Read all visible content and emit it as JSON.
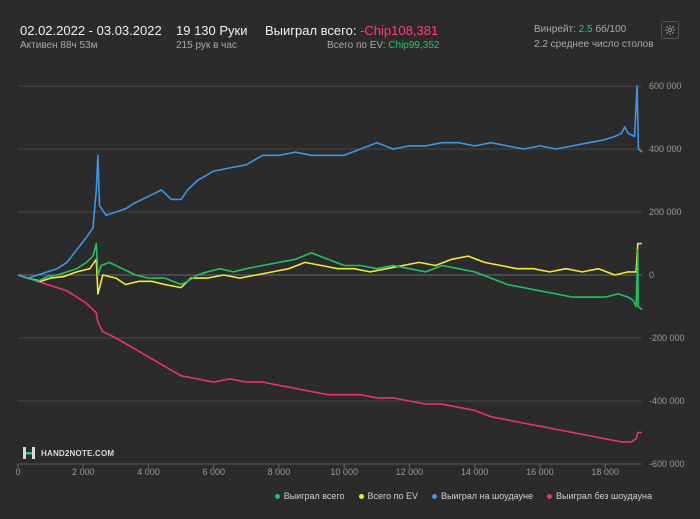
{
  "header": {
    "date_range": "02.02.2022 - 03.03.2022",
    "active_time": "Активен 88ч 53м",
    "hands": "19 130 Руки",
    "hands_per_hour": "215 рук в час",
    "won_total_label": "Выиграл всего:",
    "won_total_value": "-Chip108,381",
    "ev_label": "Всего по EV:",
    "ev_value": "Chip99,352",
    "winrate_label": "Винрейт:",
    "winrate_value": "2.5",
    "winrate_unit": "бб/100",
    "avg_tables": "2.2 среднее число столов"
  },
  "logo": {
    "text": "HAND2NOTE.COM"
  },
  "colors": {
    "background": "#2b2b2b",
    "grid": "#444444",
    "won_total": "#22c068",
    "ev": "#f2ea3a",
    "showdown": "#3f95e6",
    "non_showdown": "#e8336f"
  },
  "chart_data": {
    "type": "line",
    "title": "",
    "xlabel": "",
    "ylabel": "",
    "xlim": [
      0,
      19130
    ],
    "ylim": [
      -600000,
      600000
    ],
    "x_ticks": [
      0,
      2000,
      4000,
      6000,
      8000,
      10000,
      12000,
      14000,
      16000,
      18000
    ],
    "x_tick_labels": [
      "0",
      "2 000",
      "4 000",
      "6 000",
      "8 000",
      "10 000",
      "12 000",
      "14 000",
      "16 000",
      "18 000"
    ],
    "y_ticks": [
      -600000,
      -400000,
      -200000,
      0,
      200000,
      400000,
      600000
    ],
    "y_tick_labels": [
      "-600 000",
      "-400 000",
      "-200 000",
      "0",
      "200 000",
      "400 000",
      "600 000"
    ],
    "y_axis_side": "right",
    "grid": true,
    "legend_position": "bottom-right",
    "series": [
      {
        "name": "Выиграл всего",
        "key": "won_total",
        "points": [
          [
            0,
            0
          ],
          [
            300,
            -10000
          ],
          [
            600,
            -20000
          ],
          [
            900,
            -5000
          ],
          [
            1200,
            0
          ],
          [
            1500,
            10000
          ],
          [
            1800,
            20000
          ],
          [
            2100,
            40000
          ],
          [
            2300,
            60000
          ],
          [
            2400,
            100000
          ],
          [
            2450,
            0
          ],
          [
            2550,
            30000
          ],
          [
            2800,
            40000
          ],
          [
            3200,
            20000
          ],
          [
            3600,
            0
          ],
          [
            4000,
            -10000
          ],
          [
            4500,
            -10000
          ],
          [
            5000,
            -30000
          ],
          [
            5200,
            -20000
          ],
          [
            5500,
            0
          ],
          [
            5800,
            10000
          ],
          [
            6200,
            20000
          ],
          [
            6600,
            10000
          ],
          [
            7000,
            20000
          ],
          [
            7500,
            30000
          ],
          [
            8000,
            40000
          ],
          [
            8500,
            50000
          ],
          [
            9000,
            70000
          ],
          [
            9500,
            50000
          ],
          [
            10000,
            30000
          ],
          [
            10500,
            30000
          ],
          [
            11000,
            20000
          ],
          [
            11500,
            30000
          ],
          [
            12000,
            20000
          ],
          [
            12500,
            10000
          ],
          [
            13000,
            30000
          ],
          [
            13500,
            20000
          ],
          [
            14000,
            10000
          ],
          [
            14500,
            -10000
          ],
          [
            15000,
            -30000
          ],
          [
            15500,
            -40000
          ],
          [
            16000,
            -50000
          ],
          [
            16500,
            -60000
          ],
          [
            17000,
            -70000
          ],
          [
            17500,
            -70000
          ],
          [
            18000,
            -70000
          ],
          [
            18400,
            -60000
          ],
          [
            18700,
            -70000
          ],
          [
            18850,
            -80000
          ],
          [
            18950,
            -100000
          ],
          [
            19000,
            80000
          ],
          [
            19010,
            -100000
          ],
          [
            19130,
            -110000
          ]
        ]
      },
      {
        "name": "Всего по EV",
        "key": "ev",
        "points": [
          [
            0,
            0
          ],
          [
            300,
            -10000
          ],
          [
            700,
            -20000
          ],
          [
            1000,
            -10000
          ],
          [
            1400,
            -5000
          ],
          [
            1800,
            10000
          ],
          [
            2200,
            20000
          ],
          [
            2400,
            50000
          ],
          [
            2450,
            -60000
          ],
          [
            2600,
            0
          ],
          [
            3000,
            -10000
          ],
          [
            3300,
            -30000
          ],
          [
            3700,
            -20000
          ],
          [
            4100,
            -20000
          ],
          [
            4500,
            -30000
          ],
          [
            5000,
            -40000
          ],
          [
            5300,
            -10000
          ],
          [
            5800,
            -10000
          ],
          [
            6300,
            0
          ],
          [
            6800,
            -10000
          ],
          [
            7300,
            0
          ],
          [
            7800,
            10000
          ],
          [
            8300,
            20000
          ],
          [
            8800,
            40000
          ],
          [
            9300,
            30000
          ],
          [
            9800,
            20000
          ],
          [
            10300,
            20000
          ],
          [
            10800,
            10000
          ],
          [
            11300,
            20000
          ],
          [
            11800,
            30000
          ],
          [
            12300,
            40000
          ],
          [
            12800,
            30000
          ],
          [
            13300,
            50000
          ],
          [
            13800,
            60000
          ],
          [
            14300,
            40000
          ],
          [
            14800,
            30000
          ],
          [
            15300,
            20000
          ],
          [
            15800,
            20000
          ],
          [
            16300,
            10000
          ],
          [
            16800,
            20000
          ],
          [
            17300,
            10000
          ],
          [
            17800,
            20000
          ],
          [
            18300,
            0
          ],
          [
            18700,
            10000
          ],
          [
            18950,
            10000
          ],
          [
            19000,
            100000
          ],
          [
            19130,
            100000
          ]
        ]
      },
      {
        "name": "Выиграл на шоудауне",
        "key": "showdown",
        "points": [
          [
            0,
            0
          ],
          [
            300,
            -10000
          ],
          [
            600,
            0
          ],
          [
            900,
            10000
          ],
          [
            1200,
            20000
          ],
          [
            1500,
            40000
          ],
          [
            1800,
            80000
          ],
          [
            2100,
            120000
          ],
          [
            2300,
            150000
          ],
          [
            2400,
            270000
          ],
          [
            2450,
            380000
          ],
          [
            2500,
            220000
          ],
          [
            2700,
            190000
          ],
          [
            3000,
            200000
          ],
          [
            3300,
            210000
          ],
          [
            3600,
            230000
          ],
          [
            4000,
            250000
          ],
          [
            4400,
            270000
          ],
          [
            4700,
            240000
          ],
          [
            5000,
            240000
          ],
          [
            5200,
            270000
          ],
          [
            5500,
            300000
          ],
          [
            6000,
            330000
          ],
          [
            6500,
            340000
          ],
          [
            7000,
            350000
          ],
          [
            7500,
            380000
          ],
          [
            8000,
            380000
          ],
          [
            8500,
            390000
          ],
          [
            9000,
            380000
          ],
          [
            9500,
            380000
          ],
          [
            10000,
            380000
          ],
          [
            10500,
            400000
          ],
          [
            11000,
            420000
          ],
          [
            11500,
            400000
          ],
          [
            12000,
            410000
          ],
          [
            12500,
            410000
          ],
          [
            13000,
            420000
          ],
          [
            13500,
            420000
          ],
          [
            14000,
            410000
          ],
          [
            14500,
            420000
          ],
          [
            15000,
            410000
          ],
          [
            15500,
            400000
          ],
          [
            16000,
            410000
          ],
          [
            16500,
            400000
          ],
          [
            17000,
            410000
          ],
          [
            17500,
            420000
          ],
          [
            18000,
            430000
          ],
          [
            18300,
            440000
          ],
          [
            18500,
            450000
          ],
          [
            18600,
            470000
          ],
          [
            18700,
            450000
          ],
          [
            18900,
            440000
          ],
          [
            18980,
            600000
          ],
          [
            19020,
            400000
          ],
          [
            19130,
            390000
          ]
        ]
      },
      {
        "name": "Выиграл без шоудауна",
        "key": "non_showdown",
        "points": [
          [
            0,
            0
          ],
          [
            300,
            -10000
          ],
          [
            600,
            -20000
          ],
          [
            900,
            -30000
          ],
          [
            1200,
            -40000
          ],
          [
            1500,
            -50000
          ],
          [
            1800,
            -70000
          ],
          [
            2100,
            -90000
          ],
          [
            2400,
            -120000
          ],
          [
            2450,
            -150000
          ],
          [
            2600,
            -180000
          ],
          [
            3000,
            -200000
          ],
          [
            3500,
            -230000
          ],
          [
            4000,
            -260000
          ],
          [
            4500,
            -290000
          ],
          [
            5000,
            -320000
          ],
          [
            5500,
            -330000
          ],
          [
            6000,
            -340000
          ],
          [
            6500,
            -330000
          ],
          [
            7000,
            -340000
          ],
          [
            7500,
            -340000
          ],
          [
            8000,
            -350000
          ],
          [
            8500,
            -360000
          ],
          [
            9000,
            -370000
          ],
          [
            9500,
            -380000
          ],
          [
            10000,
            -380000
          ],
          [
            10500,
            -380000
          ],
          [
            11000,
            -390000
          ],
          [
            11500,
            -390000
          ],
          [
            12000,
            -400000
          ],
          [
            12500,
            -410000
          ],
          [
            13000,
            -410000
          ],
          [
            13500,
            -420000
          ],
          [
            14000,
            -430000
          ],
          [
            14500,
            -450000
          ],
          [
            15000,
            -460000
          ],
          [
            15500,
            -470000
          ],
          [
            16000,
            -480000
          ],
          [
            16500,
            -490000
          ],
          [
            17000,
            -500000
          ],
          [
            17500,
            -510000
          ],
          [
            18000,
            -520000
          ],
          [
            18500,
            -530000
          ],
          [
            18800,
            -530000
          ],
          [
            18950,
            -520000
          ],
          [
            19000,
            -500000
          ],
          [
            19130,
            -500000
          ]
        ]
      }
    ]
  }
}
